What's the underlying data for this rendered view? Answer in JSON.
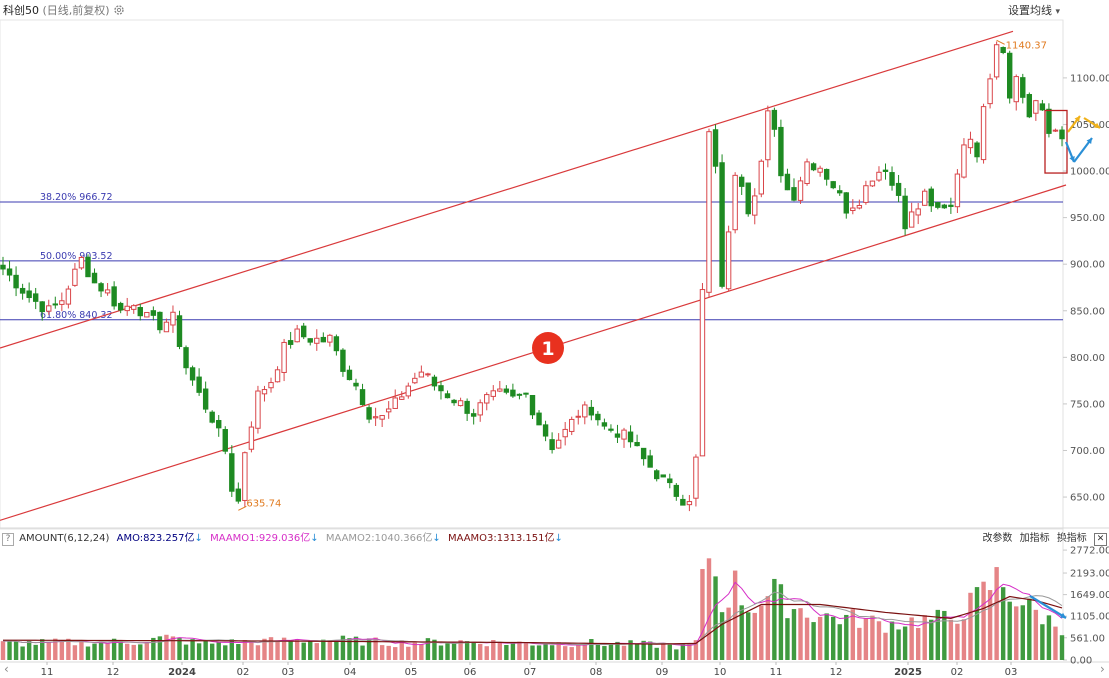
{
  "header": {
    "instrument": "科创50",
    "mode": "(日线,前复权)",
    "ma_settings_label": "设置均线",
    "dropdown_glyph": "▾"
  },
  "sub_panel": {
    "help_label": "?",
    "indicator_name": "AMOUNT(6,12,24)",
    "amo_text": "AMO:823.257亿",
    "maamo1_text": "MAAMO1:929.036亿",
    "maamo2_text": "MAAMO2:1040.366亿",
    "maamo3_text": "MAAMO3:1313.151亿",
    "change_params_label": "改参数",
    "add_indicator_label": "加指标",
    "switch_indicator_label": "换指标",
    "close_label": "✕",
    "amo_color": "#000080",
    "maamo1_color": "#d62ec7",
    "maamo2_color": "#999999",
    "maamo3_color": "#7a1010"
  },
  "annotations": {
    "marker_label": "1",
    "high_label": "1140.37",
    "low_label": "635.74",
    "fib_levels": [
      {
        "label": "38.20% 966.72",
        "value": 966.72
      },
      {
        "label": "50.00% 903.52",
        "value": 903.52
      },
      {
        "label": "61.80% 840.32",
        "value": 840.32
      }
    ]
  },
  "scroll": {
    "left_glyph": "‹",
    "right_glyph": "›"
  },
  "colors": {
    "up": "#d9464a",
    "down": "#1e8a22",
    "channel": "#d9393b",
    "fib": "#3b3bb0",
    "marker": "#e8311f",
    "annotation": "#e07a1f",
    "arrow_blue": "#2a8fd6",
    "arrow_yellow": "#f0b21b"
  },
  "chart_data": [
    {
      "type": "candlestick",
      "title": "科创50 (日线,前复权)",
      "ylim": [
        620,
        1160
      ],
      "y_ticks": [
        650,
        700,
        750,
        800,
        850,
        900,
        950,
        1000,
        1050,
        1100
      ],
      "y_tick_labels": [
        "650.00",
        "700.00",
        "750.00",
        "800.00",
        "850.00",
        "900.00",
        "950.00",
        "1000.00",
        "1050.00",
        "1100.00"
      ],
      "x_tick_labels": [
        "11",
        "12",
        "2024",
        "02",
        "03",
        "04",
        "05",
        "06",
        "07",
        "08",
        "09",
        "10",
        "11",
        "12",
        "2025",
        "02",
        "03"
      ],
      "close_path": [
        [
          0,
          895
        ],
        [
          4,
          865
        ],
        [
          7,
          850
        ],
        [
          9,
          862
        ],
        [
          12,
          905
        ],
        [
          14,
          880
        ],
        [
          16,
          870
        ],
        [
          18,
          850
        ],
        [
          20,
          860
        ],
        [
          22,
          842
        ],
        [
          24,
          835
        ],
        [
          26,
          842
        ],
        [
          28,
          790
        ],
        [
          30,
          760
        ],
        [
          32,
          735
        ],
        [
          34,
          700
        ],
        [
          35,
          660
        ],
        [
          36,
          645
        ],
        [
          37,
          700
        ],
        [
          39,
          760
        ],
        [
          41,
          775
        ],
        [
          43,
          810
        ],
        [
          45,
          825
        ],
        [
          47,
          820
        ],
        [
          49,
          818
        ],
        [
          50,
          820
        ],
        [
          52,
          790
        ],
        [
          54,
          770
        ],
        [
          56,
          740
        ],
        [
          58,
          735
        ],
        [
          60,
          750
        ],
        [
          62,
          770
        ],
        [
          64,
          785
        ],
        [
          66,
          770
        ],
        [
          68,
          760
        ],
        [
          70,
          750
        ],
        [
          72,
          740
        ],
        [
          74,
          755
        ],
        [
          76,
          760
        ],
        [
          78,
          755
        ],
        [
          80,
          760
        ],
        [
          82,
          730
        ],
        [
          84,
          705
        ],
        [
          86,
          720
        ],
        [
          88,
          740
        ],
        [
          90,
          745
        ],
        [
          92,
          725
        ],
        [
          94,
          720
        ],
        [
          96,
          710
        ],
        [
          98,
          690
        ],
        [
          100,
          675
        ],
        [
          102,
          660
        ],
        [
          104,
          648
        ],
        [
          105,
          650
        ],
        [
          106,
          690
        ],
        [
          106.5,
          760
        ],
        [
          107,
          870
        ],
        [
          108,
          1040
        ],
        [
          109,
          1000
        ],
        [
          110,
          880
        ],
        [
          111,
          930
        ],
        [
          112,
          1000
        ],
        [
          113,
          990
        ],
        [
          114,
          960
        ],
        [
          115,
          980
        ],
        [
          116,
          1010
        ],
        [
          117,
          1060
        ],
        [
          118,
          1040
        ],
        [
          119,
          1000
        ],
        [
          120,
          980
        ],
        [
          121,
          975
        ],
        [
          123,
          1010
        ],
        [
          125,
          1005
        ],
        [
          127,
          985
        ],
        [
          129,
          960
        ],
        [
          131,
          970
        ],
        [
          133,
          995
        ],
        [
          135,
          1005
        ],
        [
          136,
          985
        ],
        [
          137,
          975
        ],
        [
          138,
          945
        ],
        [
          140,
          960
        ],
        [
          141,
          975
        ],
        [
          143,
          955
        ],
        [
          145,
          960
        ],
        [
          146,
          1000
        ],
        [
          147,
          1030
        ],
        [
          148,
          1040
        ],
        [
          149,
          1010
        ],
        [
          150,
          1075
        ],
        [
          151,
          1105
        ],
        [
          152,
          1140
        ],
        [
          153,
          1130
        ],
        [
          154,
          1085
        ],
        [
          155,
          1100
        ],
        [
          156,
          1080
        ],
        [
          157,
          1060
        ],
        [
          158,
          1075
        ],
        [
          159,
          1060
        ],
        [
          160,
          1040
        ],
        [
          161,
          1045
        ],
        [
          162,
          1040
        ]
      ],
      "high_annotation": 1140.37,
      "low_annotation": 635.74,
      "fibonacci": [
        {
          "level": "38.20%",
          "value": 966.72
        },
        {
          "level": "50.00%",
          "value": 903.52
        },
        {
          "level": "61.80%",
          "value": 840.32
        }
      ]
    },
    {
      "type": "bar",
      "title": "AMOUNT(6,12,24)",
      "unit": "亿",
      "ylim": [
        0,
        2900
      ],
      "y_ticks": [
        0,
        561,
        1105,
        1649,
        2193,
        2772
      ],
      "y_tick_labels": [
        "0.00",
        "561.00",
        "1105.00",
        "1649.00",
        "2193.00",
        "2772.00"
      ],
      "latest": {
        "AMO": 823.257,
        "MAAMO1": 929.036,
        "MAAMO2": 1040.366,
        "MAAMO3": 1313.151
      },
      "amount_path": [
        [
          0,
          420
        ],
        [
          20,
          460
        ],
        [
          25,
          560
        ],
        [
          30,
          420
        ],
        [
          40,
          470
        ],
        [
          50,
          520
        ],
        [
          60,
          430
        ],
        [
          70,
          470
        ],
        [
          80,
          420
        ],
        [
          90,
          430
        ],
        [
          100,
          380
        ],
        [
          104,
          330
        ],
        [
          106,
          450
        ],
        [
          107,
          1900
        ],
        [
          108,
          2772
        ],
        [
          110,
          1400
        ],
        [
          112,
          1900
        ],
        [
          114,
          1300
        ],
        [
          116,
          1500
        ],
        [
          118,
          1700
        ],
        [
          120,
          1400
        ],
        [
          125,
          1100
        ],
        [
          130,
          1050
        ],
        [
          135,
          900
        ],
        [
          140,
          1000
        ],
        [
          145,
          1050
        ],
        [
          148,
          1400
        ],
        [
          150,
          1700
        ],
        [
          152,
          2050
        ],
        [
          154,
          1700
        ],
        [
          157,
          1300
        ],
        [
          160,
          1000
        ],
        [
          162,
          823
        ]
      ],
      "ma_long_path": [
        [
          0,
          500
        ],
        [
          40,
          480
        ],
        [
          60,
          460
        ],
        [
          80,
          440
        ],
        [
          100,
          400
        ],
        [
          106,
          420
        ],
        [
          110,
          900
        ],
        [
          116,
          1400
        ],
        [
          125,
          1400
        ],
        [
          135,
          1200
        ],
        [
          145,
          1050
        ],
        [
          150,
          1300
        ],
        [
          154,
          1600
        ],
        [
          158,
          1500
        ],
        [
          162,
          1313
        ]
      ]
    }
  ]
}
